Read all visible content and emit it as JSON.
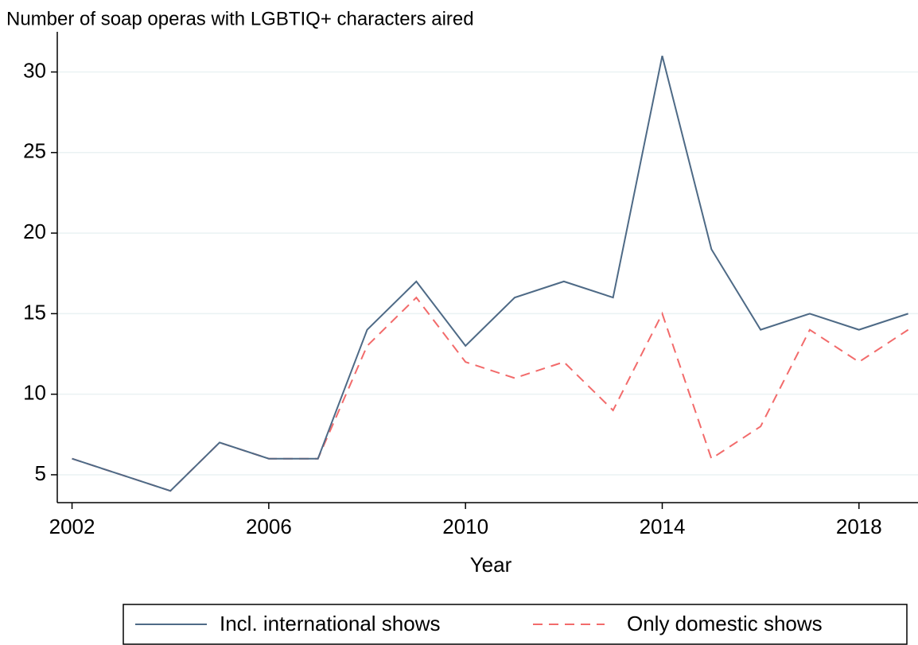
{
  "chart_data": {
    "type": "line",
    "title": "Number of soap operas with LGBTIQ+ characters aired",
    "xlabel": "Year",
    "x": [
      2002,
      2003,
      2004,
      2005,
      2006,
      2007,
      2008,
      2009,
      2010,
      2011,
      2012,
      2013,
      2014,
      2015,
      2016,
      2017,
      2018,
      2019
    ],
    "series": [
      {
        "name": "Incl. international shows",
        "color": "#4e6a86",
        "dash": false,
        "values": [
          6,
          5,
          4,
          7,
          6,
          6,
          14,
          17,
          13,
          16,
          17,
          16,
          31,
          19,
          14,
          15,
          14,
          15
        ]
      },
      {
        "name": "Only domestic shows",
        "color": "#f26b6b",
        "dash": true,
        "values": [
          6,
          5,
          4,
          7,
          6,
          6,
          13,
          16,
          12,
          11,
          12,
          9,
          15,
          6,
          8,
          14,
          12,
          14
        ]
      }
    ],
    "xlim": [
      2001.7,
      2019.2
    ],
    "xticks": [
      2002,
      2006,
      2010,
      2014,
      2018
    ],
    "ylim": [
      3.27,
      32
    ],
    "yticks": [
      5,
      10,
      15,
      20,
      25,
      30
    ],
    "grid": true,
    "legend": "bottom"
  }
}
